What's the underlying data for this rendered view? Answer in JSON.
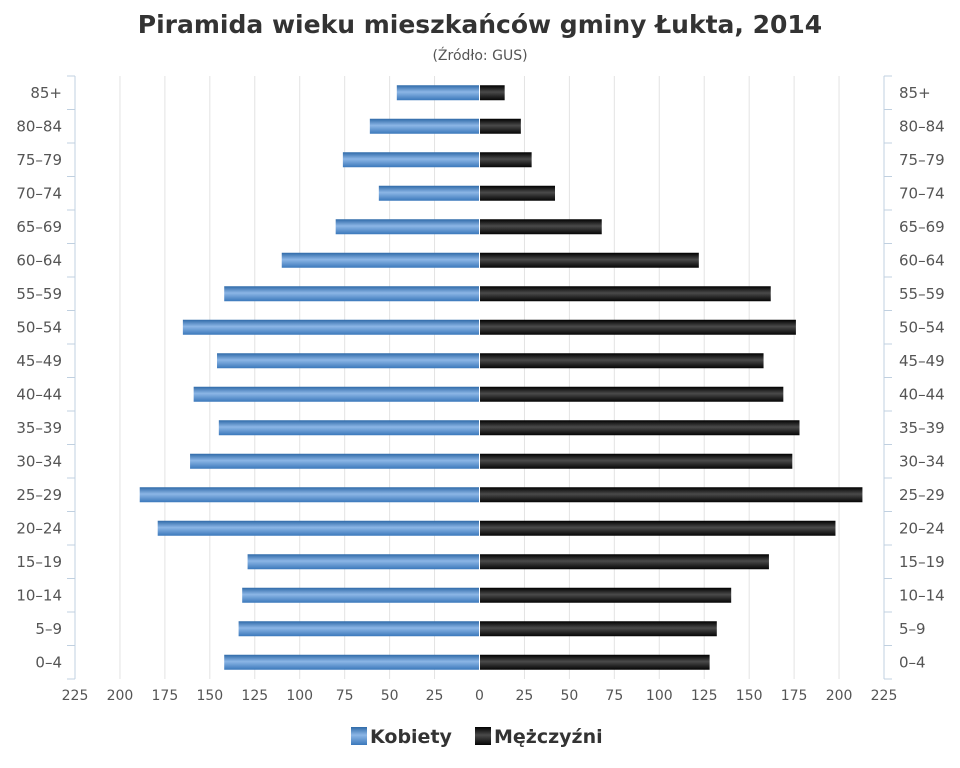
{
  "chart_data": {
    "type": "bar",
    "orientation": "horizontal",
    "title": "Piramida wieku mieszkańców gminy Łukta, 2014",
    "subtitle": "(Źródło: GUS)",
    "categories": [
      "0–4",
      "5–9",
      "10–14",
      "15–19",
      "20–24",
      "25–29",
      "30–34",
      "35–39",
      "40–44",
      "45–49",
      "50–54",
      "55–59",
      "60–64",
      "65–69",
      "70–74",
      "75–79",
      "80–84",
      "85+"
    ],
    "series": [
      {
        "name": "Kobiety",
        "side": "left",
        "color": "#4a86c6",
        "values": [
          142,
          134,
          132,
          129,
          179,
          189,
          161,
          145,
          159,
          146,
          165,
          142,
          110,
          80,
          56,
          76,
          61,
          46
        ]
      },
      {
        "name": "Mężczyźni",
        "side": "right",
        "color": "#1a1a1a",
        "values": [
          128,
          132,
          140,
          161,
          198,
          213,
          174,
          178,
          169,
          158,
          176,
          162,
          122,
          68,
          42,
          29,
          23,
          14
        ]
      }
    ],
    "xlim": [
      -225,
      225
    ],
    "x_ticks": [
      -225,
      -200,
      -175,
      -150,
      -125,
      -100,
      -75,
      -50,
      -25,
      0,
      25,
      50,
      75,
      100,
      125,
      150,
      175,
      200,
      225
    ],
    "x_tick_labels": [
      "225",
      "200",
      "175",
      "150",
      "125",
      "100",
      "75",
      "50",
      "25",
      "0",
      "25",
      "50",
      "75",
      "100",
      "125",
      "150",
      "175",
      "200",
      "225"
    ],
    "grid": true,
    "legend_position": "bottom-center"
  }
}
